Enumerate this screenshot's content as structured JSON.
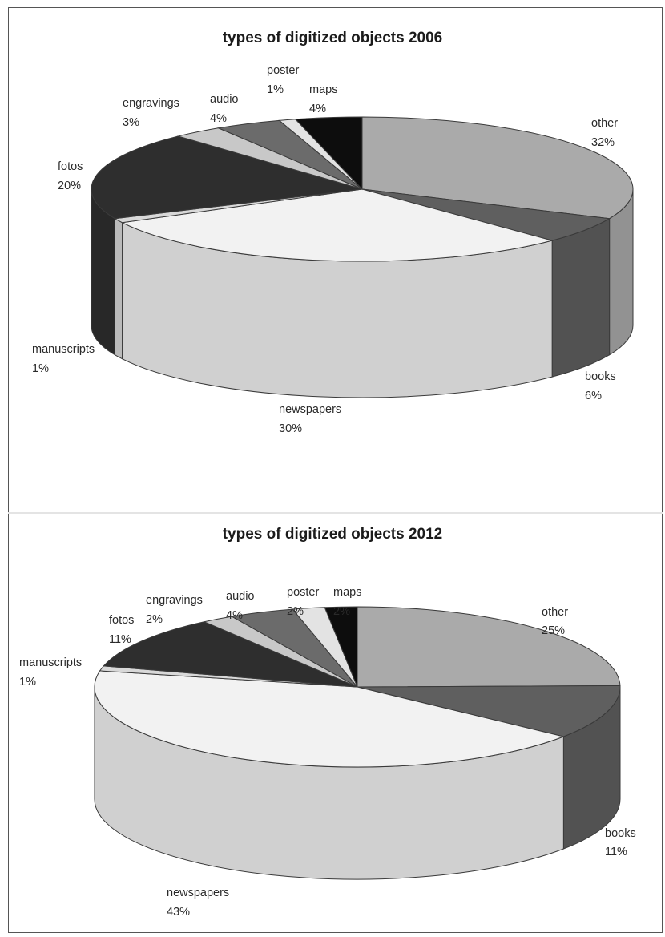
{
  "chart_data": [
    {
      "type": "pie",
      "title": "types of digitized objects 2006",
      "slices": [
        {
          "label": "other",
          "value": 32,
          "value_label": "32%",
          "color": "#aaaaaa"
        },
        {
          "label": "books",
          "value": 6,
          "value_label": "6%",
          "color": "#5f5f5f"
        },
        {
          "label": "newspapers",
          "value": 30,
          "value_label": "30%",
          "color": "#f2f2f2"
        },
        {
          "label": "manuscripts",
          "value": 1,
          "value_label": "1%",
          "color": "#d8d8d8"
        },
        {
          "label": "fotos",
          "value": 20,
          "value_label": "20%",
          "color": "#2e2e2e"
        },
        {
          "label": "engravings",
          "value": 3,
          "value_label": "3%",
          "color": "#c8c8c8"
        },
        {
          "label": "audio",
          "value": 4,
          "value_label": "4%",
          "color": "#6b6b6b"
        },
        {
          "label": "poster",
          "value": 1,
          "value_label": "1%",
          "color": "#e3e3e3"
        },
        {
          "label": "maps",
          "value": 4,
          "value_label": "4%",
          "color": "#0d0d0d"
        }
      ]
    },
    {
      "type": "pie",
      "title": "types of digitized objects 2012",
      "slices": [
        {
          "label": "other",
          "value": 25,
          "value_label": "25%",
          "color": "#aaaaaa"
        },
        {
          "label": "books",
          "value": 11,
          "value_label": "11%",
          "color": "#5f5f5f"
        },
        {
          "label": "newspapers",
          "value": 43,
          "value_label": "43%",
          "color": "#f2f2f2"
        },
        {
          "label": "manuscripts",
          "value": 1,
          "value_label": "1%",
          "color": "#d8d8d8"
        },
        {
          "label": "fotos",
          "value": 11,
          "value_label": "11%",
          "color": "#2e2e2e"
        },
        {
          "label": "engravings",
          "value": 2,
          "value_label": "2%",
          "color": "#c8c8c8"
        },
        {
          "label": "audio",
          "value": 4,
          "value_label": "4%",
          "color": "#6b6b6b"
        },
        {
          "label": "poster",
          "value": 2,
          "value_label": "2%",
          "color": "#e3e3e3"
        },
        {
          "label": "maps",
          "value": 2,
          "value_label": "2%",
          "color": "#0d0d0d"
        }
      ]
    }
  ]
}
